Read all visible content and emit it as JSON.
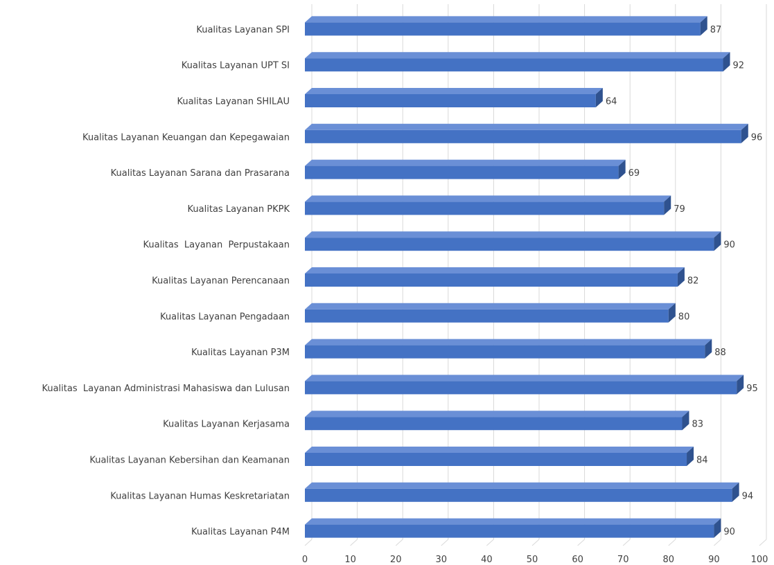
{
  "chart_data": {
    "type": "bar",
    "orientation": "horizontal",
    "categories": [
      "Kualitas Layanan SPI",
      "Kualitas Layanan UPT SI",
      "Kualitas Layanan SHILAU",
      "Kualitas Layanan Keuangan dan Kepegawaian",
      "Kualitas Layanan Sarana dan Prasarana",
      "Kualitas Layanan PKPK",
      "Kualitas  Layanan  Perpustakaan",
      "Kualitas Layanan Perencanaan",
      "Kualitas Layanan Pengadaan",
      "Kualitas Layanan P3M",
      "Kualitas  Layanan Administrasi Mahasiswa dan Lulusan",
      "Kualitas Layanan Kerjasama",
      "Kualitas Layanan Kebersihan dan Keamanan",
      "Kualitas Layanan Humas Keskretariatan",
      "Kualitas Layanan P4M"
    ],
    "values": [
      87,
      92,
      64,
      96,
      69,
      79,
      90,
      82,
      80,
      88,
      95,
      83,
      84,
      94,
      90
    ],
    "x_ticks": [
      "0",
      "10",
      "20",
      "30",
      "40",
      "50",
      "60",
      "70",
      "80",
      "90",
      "100"
    ],
    "xlim": [
      0,
      100
    ],
    "grid": true,
    "legend": "none",
    "bar_color": "#4472c4",
    "bar_dark_color": "#2f528f",
    "bar_light_color": "#6a8fd6",
    "grid_color": "#d9d9d9",
    "text_color": "#404040"
  }
}
